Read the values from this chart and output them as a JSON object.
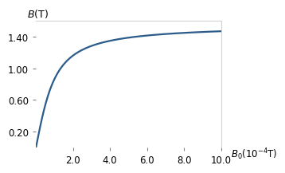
{
  "xlabel": "$B_0(10^{-4}\\mathrm{T})$",
  "ylabel": "$B(\\mathrm{T})$",
  "xlim": [
    0,
    10.0
  ],
  "ylim": [
    0,
    1.6
  ],
  "xticks": [
    2.0,
    4.0,
    6.0,
    8.0,
    10.0
  ],
  "yticks": [
    0.2,
    0.6,
    1.0,
    1.4
  ],
  "curve_color": "#2b5b8a",
  "curve_linewidth": 1.6,
  "saturation_value": 1.55,
  "curve_scale": 1.2,
  "background_color": "#ffffff"
}
